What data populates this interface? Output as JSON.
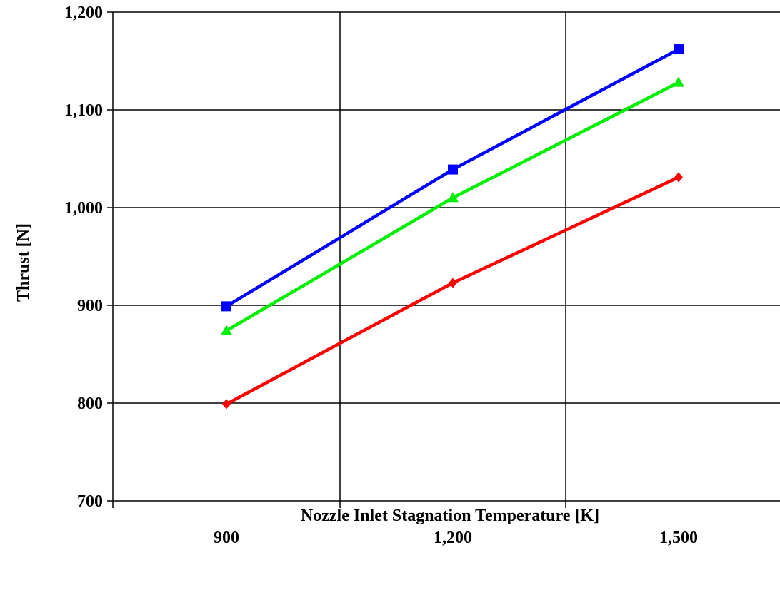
{
  "chart_data": {
    "type": "line",
    "xlabel": "Nozzle Inlet Stagnation Temperature [K]",
    "ylabel": "Thrust [N]",
    "x": [
      900,
      1200,
      1500
    ],
    "x_tick_labels": [
      "900",
      "1,200",
      "1,500"
    ],
    "y_tick_values": [
      700,
      800,
      900,
      1000,
      1100,
      1200
    ],
    "y_tick_labels": [
      "700",
      "800",
      "900",
      "1,000",
      "1,100",
      "1,200"
    ],
    "ylim": [
      700,
      1200
    ],
    "grid": true,
    "series": [
      {
        "values": [
          899,
          1039,
          1162
        ],
        "color": "#0000ff",
        "marker": "square"
      },
      {
        "values": [
          874,
          1010,
          1128
        ],
        "color": "#00ee00",
        "marker": "triangle"
      },
      {
        "values": [
          799,
          923,
          1031
        ],
        "color": "#ff0000",
        "marker": "diamond"
      }
    ]
  }
}
